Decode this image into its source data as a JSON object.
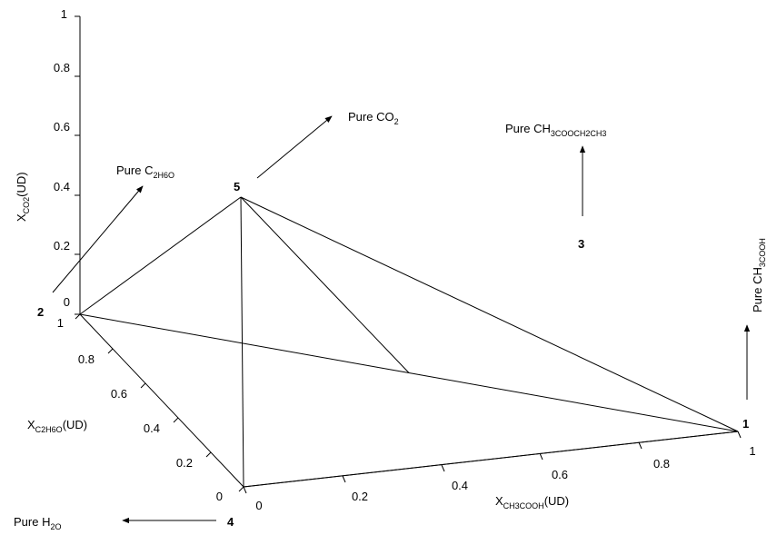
{
  "chart_data": {
    "type": "ternary-3d-composition",
    "axes": {
      "x": {
        "label": "X",
        "label_sub": "CH3COOH",
        "unit": "(UD)",
        "ticks": [
          "0",
          "0.2",
          "0.4",
          "0.6",
          "0.8",
          "1"
        ],
        "range": [
          0,
          1
        ]
      },
      "y": {
        "label": "X",
        "label_sub": "C2H6O",
        "unit": "(UD)",
        "ticks": [
          "0",
          "0.2",
          "0.4",
          "0.6",
          "0.8",
          "1"
        ],
        "range": [
          0,
          1
        ]
      },
      "z": {
        "label": "X",
        "label_sub": "CO2",
        "unit": "(UD)",
        "ticks": [
          "0",
          "0.2",
          "0.4",
          "0.6",
          "0.8",
          "1"
        ],
        "range": [
          0,
          1
        ]
      }
    },
    "points": [
      {
        "id": "1",
        "x": 1,
        "y": 0,
        "z": 0
      },
      {
        "id": "2",
        "x": 0,
        "y": 1,
        "z": 0
      },
      {
        "id": "3",
        "x": 0.5,
        "y": 0.5,
        "z": 0
      },
      {
        "id": "4",
        "x": 0,
        "y": 0,
        "z": 0
      },
      {
        "id": "5",
        "x": 0,
        "y": 0,
        "z": 1
      }
    ],
    "edges": [
      [
        "2",
        "3"
      ],
      [
        "3",
        "1"
      ],
      [
        "1",
        "4"
      ],
      [
        "4",
        "5"
      ],
      [
        "5",
        "2"
      ],
      [
        "5",
        "3"
      ],
      [
        "5",
        "1"
      ]
    ],
    "annotations": [
      {
        "text": "Pure CO",
        "sub": "2",
        "direction": "up-right"
      },
      {
        "text": "Pure C",
        "sub": "2H6O",
        "direction": "up-right"
      },
      {
        "text": "Pure CH",
        "sub": "3COOCH2CH3",
        "direction": "up"
      },
      {
        "text": "Pure CH",
        "sub": "3COOH",
        "direction": "up"
      },
      {
        "text": "Pure H",
        "sub": "2O",
        "direction": "left"
      }
    ],
    "grid": false
  }
}
